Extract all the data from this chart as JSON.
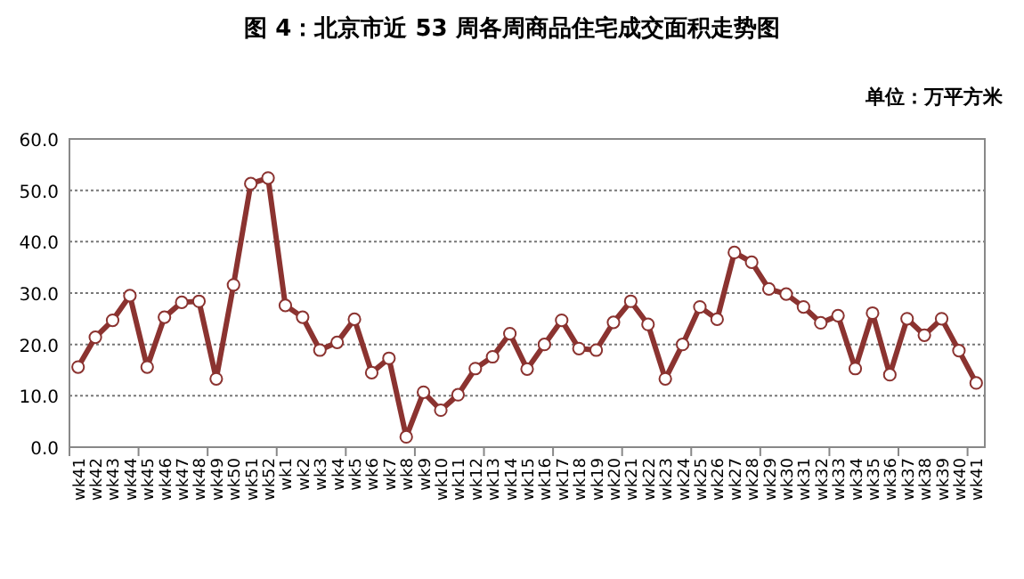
{
  "chart_data": {
    "type": "line",
    "title": "图 4：北京市近 53 周各周商品住宅成交面积走势图",
    "ylabel": "单位：万平方米",
    "categories": [
      "wk41",
      "wk42",
      "wk43",
      "wk44",
      "wk45",
      "wk46",
      "wk47",
      "wk48",
      "wk49",
      "wk50",
      "wk51",
      "wk52",
      "wk1",
      "wk2",
      "wk3",
      "wk4",
      "wk5",
      "wk6",
      "wk7",
      "wk8",
      "wk9",
      "wk10",
      "wk11",
      "wk12",
      "wk13",
      "wk14",
      "wk15",
      "wk16",
      "wk17",
      "wk18",
      "wk19",
      "wk20",
      "wk21",
      "wk22",
      "wk23",
      "wk24",
      "wk25",
      "wk26",
      "wk27",
      "wk28",
      "wk29",
      "wk30",
      "wk31",
      "wk32",
      "wk33",
      "wk34",
      "wk35",
      "wk36",
      "wk37",
      "wk38",
      "wk39",
      "wk40",
      "wk41"
    ],
    "series": [
      {
        "color": "#8b3330",
        "values": [
          15.6,
          21.4,
          24.7,
          29.5,
          15.6,
          25.3,
          28.2,
          28.4,
          13.3,
          31.6,
          51.3,
          52.4,
          27.6,
          25.3,
          18.9,
          20.4,
          24.9,
          14.5,
          17.3,
          2.0,
          10.7,
          7.2,
          10.2,
          15.3,
          17.6,
          22.1,
          15.2,
          20.0,
          24.7,
          19.2,
          18.9,
          24.3,
          28.4,
          23.9,
          13.3,
          20.0,
          27.3,
          24.9,
          37.9,
          36.0,
          30.8,
          29.8,
          27.3,
          24.2,
          25.6,
          15.3,
          26.1,
          14.1,
          25.0,
          21.8,
          25.0,
          18.8,
          12.5
        ]
      }
    ],
    "ylim": [
      0,
      60
    ],
    "yticks": [
      {
        "value": 0,
        "label": "0.0"
      },
      {
        "value": 10,
        "label": "10.0"
      },
      {
        "value": 20,
        "label": "20.0"
      },
      {
        "value": 30,
        "label": "30.0"
      },
      {
        "value": 40,
        "label": "40.0"
      },
      {
        "value": 50,
        "label": "50.0"
      },
      {
        "value": 60,
        "label": "60.0"
      }
    ],
    "grid": "y",
    "marker": "circle",
    "line_style": "solid"
  }
}
